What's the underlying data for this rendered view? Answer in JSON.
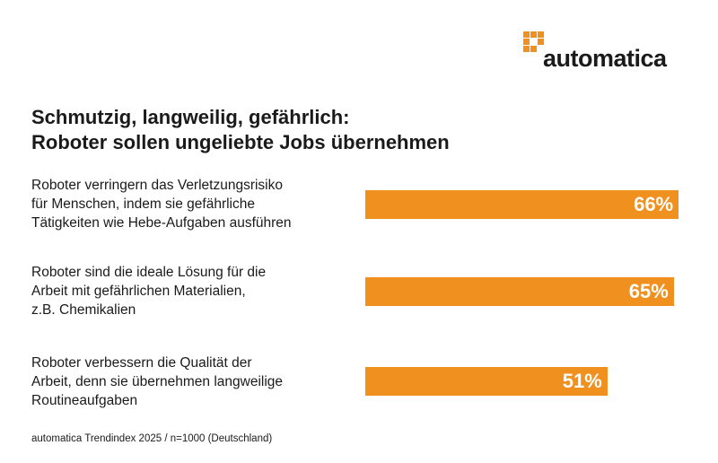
{
  "brand": {
    "logo_text": "automatica",
    "color": "#f0901e"
  },
  "chart_data": {
    "type": "bar",
    "orientation": "horizontal",
    "title": "Schmutzig, langweilig, gefährlich:",
    "subtitle": "Roboter sollen ungeliebte Jobs übernehmen",
    "categories": [
      [
        "Roboter verringern das Verletzungsrisiko",
        "für Menschen, indem sie gefährliche",
        "Tätigkeiten wie Hebe-Aufgaben ausführen"
      ],
      [
        "Roboter sind die ideale Lösung für die",
        "Arbeit mit gefährlichen Materialien,",
        "z.B. Chemikalien"
      ],
      [
        "Roboter verbessern die Qualität der",
        "Arbeit, denn sie übernehmen langweilige",
        "Routineaufgaben"
      ]
    ],
    "values": [
      66,
      65,
      51
    ],
    "data_labels": [
      "66%",
      "65%",
      "51%"
    ],
    "unit": "%",
    "xlim": [
      0,
      100
    ],
    "grid": false,
    "bar_color": "#f0901e"
  },
  "source": "automatica Trendindex 2025 / n=1000 (Deutschland)"
}
